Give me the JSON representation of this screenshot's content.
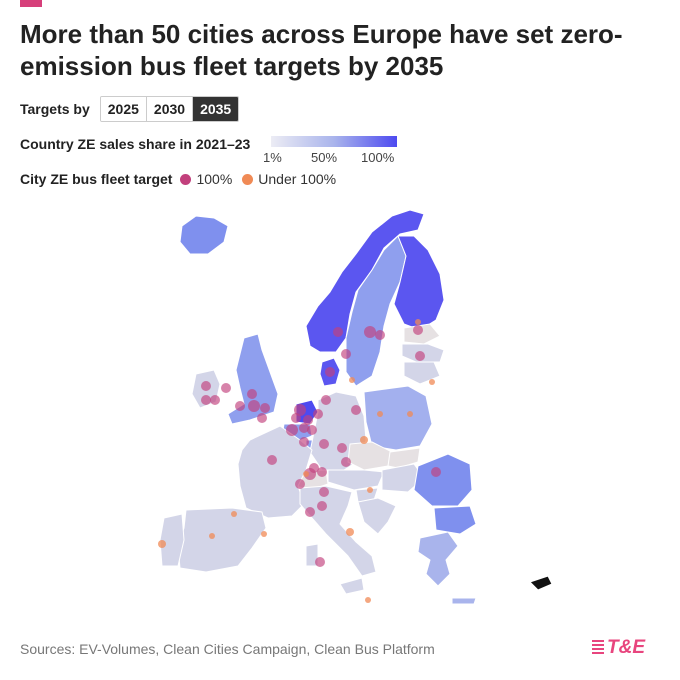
{
  "header": {
    "title": "More than 50 cities across Europe have set zero-emission bus fleet targets by 2035",
    "accent_color": "#d63f7a"
  },
  "targets": {
    "label": "Targets by",
    "options": [
      "2025",
      "2030",
      "2035"
    ],
    "selected": "2035"
  },
  "legend": {
    "sales_share_label": "Country ZE sales share in 2021–23",
    "gradient_ticks": [
      "1%",
      "50%",
      "100%"
    ],
    "gradient_colors": [
      "#ececf4",
      "#a9b4ec",
      "#4d4af0"
    ],
    "city_label": "City ZE bus fleet target",
    "city_items": [
      {
        "label": "100%",
        "color": "#c2407c"
      },
      {
        "label": "Under 100%",
        "color": "#f08a55"
      }
    ]
  },
  "map": {
    "colors": {
      "full_target": "#c2407c",
      "under_target": "#f08a55",
      "light": "#d3d5e8",
      "faint": "#e6e1e3",
      "medium": "#8f9fee",
      "strong": "#5b56f0",
      "cyprus": "#111111"
    }
  },
  "footer": {
    "sources": "Sources: EV-Volumes, Clean Cities Campaign, Clean Bus Platform",
    "logo_text": "T&E"
  }
}
